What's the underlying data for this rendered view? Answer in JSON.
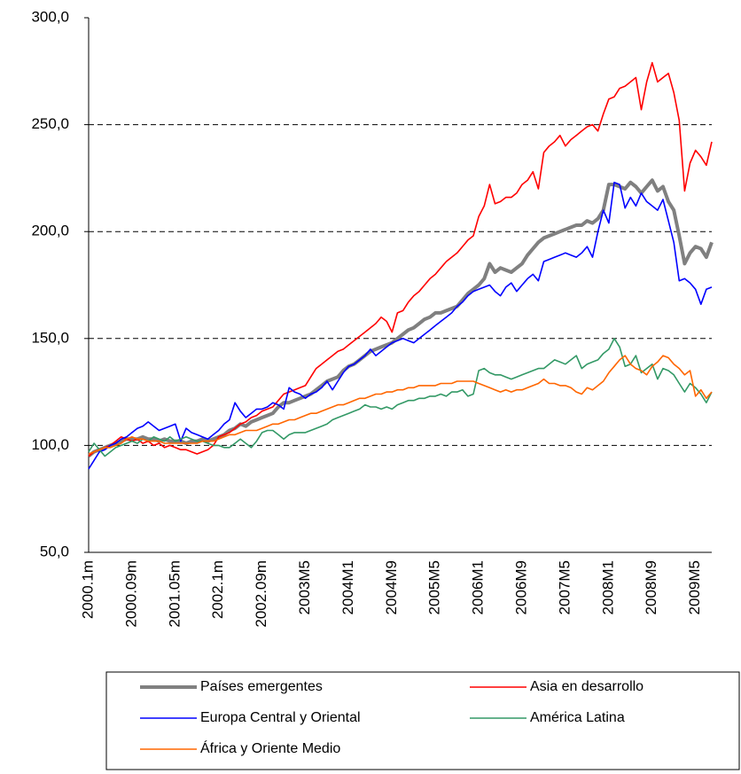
{
  "chart_data": {
    "type": "line",
    "categories": [
      "2000.1m",
      null,
      null,
      null,
      null,
      null,
      null,
      null,
      "2000.09m",
      null,
      null,
      null,
      null,
      null,
      null,
      null,
      "2001.05m",
      null,
      null,
      null,
      null,
      null,
      null,
      null,
      "2002.1m",
      null,
      null,
      null,
      null,
      null,
      null,
      null,
      "2002.09m",
      null,
      null,
      null,
      null,
      null,
      null,
      null,
      "2003M5",
      null,
      null,
      null,
      null,
      null,
      null,
      null,
      "2004M1",
      null,
      null,
      null,
      null,
      null,
      null,
      null,
      "2004M9",
      null,
      null,
      null,
      null,
      null,
      null,
      null,
      "2005M5",
      null,
      null,
      null,
      null,
      null,
      null,
      null,
      "2006M1",
      null,
      null,
      null,
      null,
      null,
      null,
      null,
      "2006M9",
      null,
      null,
      null,
      null,
      null,
      null,
      null,
      "2007M5",
      null,
      null,
      null,
      null,
      null,
      null,
      null,
      "2008M1",
      null,
      null,
      null,
      null,
      null,
      null,
      null,
      "2008M9",
      null,
      null,
      null,
      null,
      null,
      null,
      null,
      "2009M5",
      null,
      null,
      null
    ],
    "series": [
      {
        "name": "Países emergentes",
        "color": "#808080",
        "values": [
          95,
          97,
          98,
          99,
          100,
          101,
          102,
          103,
          103,
          103,
          104,
          103,
          103,
          102,
          103,
          102,
          102,
          102,
          101,
          102,
          102,
          103,
          102,
          103,
          104,
          105,
          107,
          108,
          110,
          109,
          111,
          112,
          113,
          114,
          115,
          118,
          120,
          120,
          121,
          122,
          123,
          124,
          126,
          128,
          130,
          131,
          132,
          135,
          137,
          138,
          140,
          142,
          144,
          145,
          146,
          147,
          148,
          150,
          152,
          154,
          155,
          157,
          159,
          160,
          162,
          162,
          163,
          164,
          165,
          168,
          171,
          173,
          175,
          178,
          185,
          181,
          183,
          182,
          181,
          183,
          185,
          189,
          192,
          195,
          197,
          198,
          199,
          200,
          201,
          202,
          203,
          203,
          205,
          204,
          206,
          210,
          222,
          222,
          221,
          220,
          223,
          221,
          218,
          221,
          224,
          219,
          221,
          214,
          210,
          198,
          185,
          190,
          193,
          192,
          188,
          195
        ]
      },
      {
        "name": "Asia en desarrollo",
        "color": "#ff0000",
        "values": [
          95,
          97,
          98,
          99,
          100,
          102,
          104,
          103,
          102,
          103,
          101,
          102,
          100,
          101,
          99,
          100,
          99,
          98,
          98,
          97,
          96,
          97,
          98,
          100,
          104,
          105,
          106,
          108,
          110,
          111,
          113,
          114,
          116,
          117,
          118,
          121,
          124,
          125,
          126,
          127,
          128,
          132,
          136,
          138,
          140,
          142,
          144,
          145,
          147,
          149,
          151,
          153,
          155,
          157,
          160,
          158,
          153,
          162,
          163,
          167,
          170,
          172,
          175,
          178,
          180,
          183,
          186,
          188,
          190,
          193,
          196,
          198,
          207,
          212,
          222,
          213,
          214,
          216,
          216,
          218,
          222,
          224,
          228,
          220,
          237,
          240,
          242,
          245,
          240,
          243,
          245,
          247,
          249,
          250,
          247,
          255,
          262,
          263,
          267,
          268,
          270,
          272,
          257,
          270,
          279,
          270,
          272,
          274,
          265,
          252,
          219,
          232,
          238,
          235,
          231,
          242
        ]
      },
      {
        "name": "Europa Central y Oriental",
        "color": "#0000ff",
        "values": [
          89,
          93,
          97,
          98,
          100,
          101,
          103,
          104,
          106,
          108,
          109,
          111,
          109,
          107,
          108,
          109,
          110,
          102,
          108,
          106,
          105,
          104,
          103,
          105,
          107,
          110,
          112,
          120,
          116,
          113,
          115,
          117,
          117,
          118,
          120,
          119,
          117,
          127,
          125,
          124,
          122,
          124,
          125,
          127,
          130,
          126,
          130,
          134,
          137,
          138,
          140,
          142,
          145,
          142,
          144,
          146,
          148,
          149,
          150,
          149,
          148,
          150,
          152,
          154,
          156,
          158,
          160,
          162,
          165,
          167,
          170,
          172,
          173,
          174,
          175,
          172,
          170,
          174,
          176,
          172,
          175,
          178,
          180,
          177,
          186,
          187,
          188,
          189,
          190,
          189,
          188,
          190,
          193,
          188,
          200,
          210,
          204,
          223,
          222,
          211,
          216,
          212,
          218,
          214,
          212,
          210,
          215,
          205,
          195,
          177,
          178,
          176,
          173,
          166,
          173,
          174
        ]
      },
      {
        "name": "América Latina",
        "color": "#339966",
        "values": [
          97,
          101,
          98,
          95,
          97,
          99,
          100,
          101,
          102,
          101,
          103,
          102,
          104,
          103,
          102,
          104,
          102,
          103,
          104,
          103,
          102,
          102,
          101,
          100,
          100,
          99,
          99,
          101,
          103,
          101,
          99,
          102,
          106,
          107,
          107,
          105,
          103,
          105,
          106,
          106,
          106,
          107,
          108,
          109,
          110,
          112,
          113,
          114,
          115,
          116,
          117,
          119,
          118,
          118,
          117,
          118,
          117,
          119,
          120,
          121,
          121,
          122,
          122,
          123,
          123,
          124,
          123,
          125,
          125,
          126,
          123,
          124,
          135,
          136,
          134,
          133,
          133,
          132,
          131,
          132,
          133,
          134,
          135,
          136,
          136,
          138,
          140,
          139,
          138,
          140,
          142,
          136,
          138,
          139,
          140,
          143,
          145,
          150,
          146,
          137,
          138,
          142,
          134,
          136,
          138,
          131,
          136,
          135,
          133,
          129,
          125,
          129,
          127,
          124,
          120,
          125
        ]
      },
      {
        "name": "África y Oriente Medio",
        "color": "#ff6600",
        "values": [
          96,
          97,
          98,
          99,
          99,
          100,
          101,
          103,
          104,
          103,
          103,
          102,
          102,
          102,
          101,
          101,
          101,
          101,
          101,
          101,
          101,
          102,
          102,
          102,
          103,
          104,
          105,
          105,
          106,
          107,
          107,
          107,
          108,
          109,
          110,
          110,
          111,
          112,
          112,
          113,
          114,
          115,
          115,
          116,
          117,
          118,
          119,
          119,
          120,
          121,
          122,
          122,
          123,
          124,
          124,
          125,
          125,
          126,
          126,
          127,
          127,
          128,
          128,
          128,
          128,
          129,
          129,
          129,
          130,
          130,
          130,
          130,
          129,
          128,
          127,
          126,
          125,
          126,
          125,
          126,
          126,
          127,
          128,
          129,
          131,
          129,
          129,
          128,
          128,
          127,
          125,
          124,
          127,
          126,
          128,
          130,
          134,
          137,
          140,
          142,
          138,
          136,
          135,
          133,
          137,
          139,
          142,
          141,
          138,
          136,
          133,
          135,
          123,
          126,
          122,
          125
        ]
      }
    ],
    "ylim": [
      50,
      300
    ],
    "yticks": [
      {
        "value": 50,
        "label": "50,0"
      },
      {
        "value": 100,
        "label": "100,0"
      },
      {
        "value": 150,
        "label": "150,0"
      },
      {
        "value": 200,
        "label": "200,0"
      },
      {
        "value": 250,
        "label": "250,0"
      },
      {
        "value": 300,
        "label": "300,0"
      }
    ],
    "grid": true
  }
}
